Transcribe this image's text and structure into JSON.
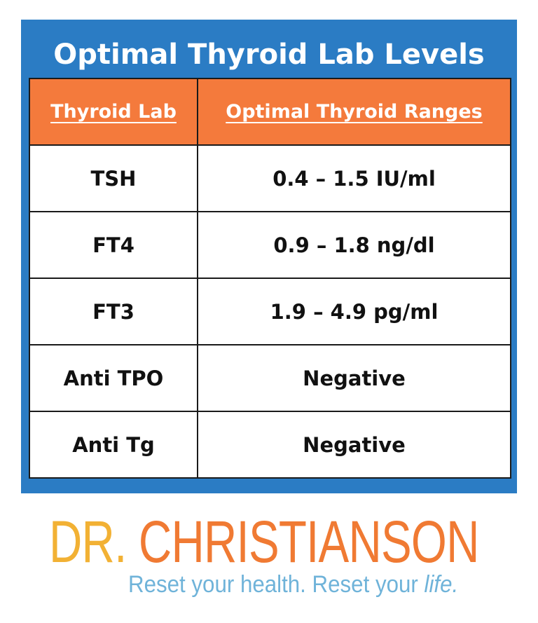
{
  "card": {
    "title": "Optimal Thyroid Lab Levels",
    "accent_color": "#2b7cc4",
    "header_color": "#f47a3c"
  },
  "table": {
    "headers": [
      "Thyroid Lab",
      "Optimal Thyroid Ranges"
    ],
    "rows": [
      {
        "lab": "TSH",
        "range": "0.4 – 1.5 IU/ml"
      },
      {
        "lab": "FT4",
        "range": "0.9 – 1.8 ng/dl"
      },
      {
        "lab": "FT3",
        "range": "1.9 – 4.9 pg/ml"
      },
      {
        "lab": "Anti TPO",
        "range": "Negative"
      },
      {
        "lab": "Anti Tg",
        "range": "Negative"
      }
    ]
  },
  "brand": {
    "first": "DR.",
    "last": "CHRISTIANSON",
    "tagline_main": "Reset your health. Reset your ",
    "tagline_emphasis": "life.",
    "colors": {
      "first": "#f2b134",
      "last": "#f07a33",
      "tagline": "#6fb3d9"
    }
  }
}
